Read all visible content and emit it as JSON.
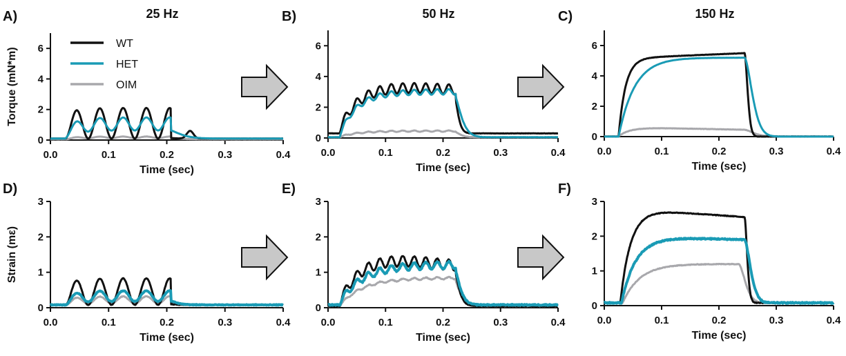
{
  "columns": [
    "25 Hz",
    "50 Hz",
    "150 Hz"
  ],
  "legend": [
    {
      "name": "WT",
      "color": "#111111"
    },
    {
      "name": "HET",
      "color": "#1a9bb5"
    },
    {
      "name": "OIM",
      "color": "#a8a8ac"
    }
  ],
  "arrow_color": "#c8c8c8",
  "chart_data": [
    {
      "type": "line",
      "panel": "A)",
      "frequency": "25 Hz",
      "measure": "torque",
      "title": "",
      "xlabel": "Time (sec)",
      "ylabel": "Torque (mN*m)",
      "xlim": [
        0,
        0.4
      ],
      "ylim": [
        0,
        7
      ],
      "xticks": [
        "0.0",
        "0.1",
        "0.2",
        "0.3",
        "0.4"
      ],
      "yticks": [
        "0",
        "2",
        "4",
        "6"
      ],
      "series_params": {
        "WT": {
          "kind": "pulses",
          "period": 0.04,
          "start": 0.025,
          "end": 0.205,
          "onset": 0.02,
          "plateau": 0.02,
          "ripple": 2.0,
          "tau": 0.02,
          "baseline": 0.1,
          "bumps": [
            [
              0.24,
              0.5
            ]
          ],
          "noise": 0.01
        },
        "HET": {
          "kind": "pulses",
          "period": 0.04,
          "start": 0.025,
          "end": 0.205,
          "onset": 0.02,
          "plateau": 0.55,
          "ripple": 0.85,
          "tau": 0.025,
          "baseline": 0.1,
          "noise": 0.01
        },
        "OIM": {
          "kind": "pulses",
          "period": 0.04,
          "start": 0.025,
          "end": 0.205,
          "onset": 0.02,
          "plateau": 0.1,
          "ripple": 0.1,
          "tau": 0.02,
          "baseline": 0.05,
          "noise": 0.01
        }
      }
    },
    {
      "type": "line",
      "panel": "B)",
      "frequency": "50 Hz",
      "measure": "torque",
      "title": "",
      "xlabel": "Time (sec)",
      "ylabel": "",
      "xlim": [
        0,
        0.4
      ],
      "ylim": [
        0,
        7
      ],
      "xticks": [
        "0.0",
        "0.1",
        "0.2",
        "0.3",
        "0.4"
      ],
      "yticks": [
        "0",
        "2",
        "4",
        "6"
      ],
      "series_params": {
        "WT": {
          "kind": "pulses",
          "period": 0.02,
          "start": 0.02,
          "end": 0.22,
          "onset": 0.035,
          "plateau": 3.0,
          "ripple": 0.65,
          "tau": 0.008,
          "baseline": 0.3,
          "decay": 0.15,
          "noise": 0.02
        },
        "HET": {
          "kind": "pulses",
          "period": 0.02,
          "start": 0.02,
          "end": 0.22,
          "onset": 0.03,
          "plateau": 2.8,
          "ripple": 0.35,
          "tau": 0.015,
          "baseline": 0.05,
          "noise": 0.02
        },
        "OIM": {
          "kind": "pulses",
          "period": 0.02,
          "start": 0.02,
          "end": 0.22,
          "onset": 0.03,
          "plateau": 0.38,
          "ripple": 0.08,
          "tau": 0.012,
          "baseline": 0.05,
          "noise": 0.02
        }
      }
    },
    {
      "type": "line",
      "panel": "C)",
      "frequency": "150 Hz",
      "measure": "torque",
      "title": "",
      "xlabel": "Time (sec)",
      "ylabel": "",
      "xlim": [
        0,
        0.4
      ],
      "ylim": [
        0,
        7
      ],
      "xticks": [
        "0.0",
        "0.1",
        "0.2",
        "0.3",
        "0.4"
      ],
      "yticks": [
        "0",
        "2",
        "4",
        "6"
      ],
      "series_params": {
        "WT": {
          "kind": "tetanus",
          "start": 0.025,
          "end": 0.245,
          "rise": 0.012,
          "plateau": 5.15,
          "peak_end": 5.5,
          "tau": 0.007,
          "baseline": 0.0,
          "noise": 0.02
        },
        "HET": {
          "kind": "tetanus",
          "start": 0.025,
          "end": 0.245,
          "rise": 0.028,
          "plateau": 5.2,
          "peak_end": 5.2,
          "tau": 0.018,
          "baseline": 0.0,
          "noise": 0.01
        },
        "OIM": {
          "kind": "tetanus",
          "start": 0.025,
          "end": 0.245,
          "rise": 0.02,
          "plateau": 0.62,
          "peak_end": 0.45,
          "tau": 0.02,
          "baseline": 0.02,
          "noise": 0.02
        }
      }
    },
    {
      "type": "line",
      "panel": "D)",
      "frequency": "25 Hz",
      "measure": "strain",
      "title": "",
      "xlabel": "Time (sec)",
      "ylabel": "Strain (mε)",
      "xlim": [
        0,
        0.4
      ],
      "ylim": [
        0,
        3
      ],
      "xticks": [
        "0.0",
        "0.1",
        "0.2",
        "0.3",
        "0.4"
      ],
      "yticks": [
        "0",
        "1",
        "2",
        "3"
      ],
      "series_params": {
        "WT": {
          "kind": "pulses",
          "period": 0.04,
          "start": 0.025,
          "end": 0.205,
          "onset": 0.02,
          "plateau": 0.02,
          "ripple": 0.75,
          "tau": 0.012,
          "baseline": 0.08,
          "noise": 0.015
        },
        "HET": {
          "kind": "pulses",
          "period": 0.04,
          "start": 0.025,
          "end": 0.205,
          "onset": 0.02,
          "plateau": 0.12,
          "ripple": 0.3,
          "tau": 0.015,
          "baseline": 0.08,
          "noise": 0.02
        },
        "OIM": {
          "kind": "pulses",
          "period": 0.04,
          "start": 0.025,
          "end": 0.205,
          "onset": 0.02,
          "plateau": 0.06,
          "ripple": 0.2,
          "tau": 0.015,
          "baseline": 0.08,
          "noise": 0.015
        }
      }
    },
    {
      "type": "line",
      "panel": "E)",
      "frequency": "50 Hz",
      "measure": "strain",
      "title": "",
      "xlabel": "Time (sec)",
      "ylabel": "",
      "xlim": [
        0,
        0.4
      ],
      "ylim": [
        0,
        3
      ],
      "xticks": [
        "0.0",
        "0.1",
        "0.2",
        "0.3",
        "0.4"
      ],
      "yticks": [
        "0",
        "1",
        "2",
        "3"
      ],
      "series_params": {
        "WT": {
          "kind": "pulses",
          "period": 0.02,
          "start": 0.02,
          "end": 0.22,
          "onset": 0.04,
          "plateau": 1.45,
          "ripple": 0.3,
          "tau": 0.01,
          "baseline": 0.05,
          "decay": 0.3,
          "noise": 0.02
        },
        "HET": {
          "kind": "pulses",
          "period": 0.02,
          "start": 0.02,
          "end": 0.22,
          "onset": 0.04,
          "plateau": 1.05,
          "ripple": 0.2,
          "tau": 0.012,
          "baseline": 0.08,
          "noise": 0.03
        },
        "OIM": {
          "kind": "pulses",
          "period": 0.02,
          "start": 0.02,
          "end": 0.22,
          "onset": 0.04,
          "plateau": 0.78,
          "ripple": 0.06,
          "tau": 0.012,
          "baseline": 0.05,
          "noise": 0.02
        }
      }
    },
    {
      "type": "line",
      "panel": "F)",
      "frequency": "150 Hz",
      "measure": "strain",
      "title": "",
      "xlabel": "Time (sec)",
      "ylabel": "",
      "xlim": [
        0,
        0.4
      ],
      "ylim": [
        0,
        3
      ],
      "xticks": [
        "0.0",
        "0.1",
        "0.2",
        "0.3",
        "0.4"
      ],
      "yticks": [
        "0",
        "1",
        "2",
        "3"
      ],
      "series_params": {
        "WT": {
          "kind": "tetanus",
          "start": 0.028,
          "end": 0.245,
          "rise": 0.018,
          "plateau": 2.8,
          "peak_end": 2.55,
          "tau": 0.006,
          "baseline": 0.08,
          "noise": 0.02
        },
        "HET": {
          "kind": "tetanus",
          "start": 0.03,
          "end": 0.245,
          "rise": 0.025,
          "plateau": 2.0,
          "peak_end": 1.9,
          "tau": 0.014,
          "baseline": 0.08,
          "noise": 0.035
        },
        "OIM": {
          "kind": "tetanus",
          "start": 0.032,
          "end": 0.235,
          "rise": 0.03,
          "plateau": 1.2,
          "peak_end": 1.2,
          "tau": 0.015,
          "baseline": 0.08,
          "noise": 0.02
        }
      }
    }
  ]
}
